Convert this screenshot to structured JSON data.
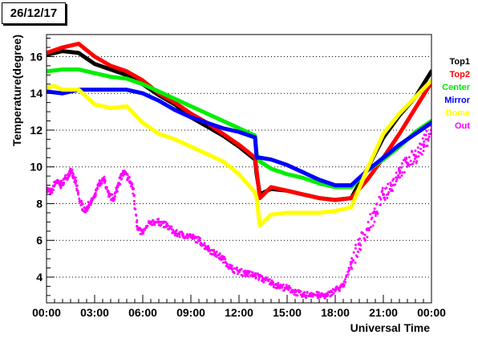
{
  "title": "26/12/17",
  "chart_data": {
    "type": "scatter",
    "xlabel": "Universal Time",
    "ylabel": "Temperature(degree)",
    "xlim": [
      0,
      24
    ],
    "ylim": [
      2.6,
      17.2
    ],
    "grid": "horizontal-dotted",
    "legend_position": "right",
    "x_ticks": [
      0,
      3,
      6,
      9,
      12,
      15,
      18,
      21,
      24
    ],
    "x_tick_labels": [
      "00:00",
      "03:00",
      "06:00",
      "09:00",
      "12:00",
      "15:00",
      "18:00",
      "21:00",
      "00:00"
    ],
    "y_ticks": [
      4,
      6,
      8,
      10,
      12,
      14,
      16
    ],
    "y_tick_labels": [
      "4",
      "6",
      "8",
      "10",
      "12",
      "14",
      "16"
    ],
    "series": [
      {
        "name": "Top1",
        "color": "#000000",
        "style": "thick",
        "x": [
          0,
          1,
          2,
          3,
          4,
          5,
          6,
          7,
          8,
          9,
          10,
          11,
          12,
          13,
          13.1,
          13.3,
          14,
          15,
          16,
          17,
          18,
          19,
          20,
          21,
          22,
          23,
          24
        ],
        "y": [
          16.1,
          16.3,
          16.2,
          15.6,
          15.3,
          15.0,
          14.5,
          13.9,
          13.4,
          12.7,
          12.2,
          11.7,
          11.1,
          10.4,
          9.6,
          8.5,
          8.8,
          8.7,
          8.5,
          8.3,
          8.2,
          8.3,
          9.9,
          11.6,
          12.8,
          13.8,
          15.2
        ]
      },
      {
        "name": "Top2",
        "color": "#ff0000",
        "style": "thick",
        "x": [
          0,
          1,
          2,
          3,
          4,
          5,
          6,
          7,
          8,
          9,
          10,
          11,
          12,
          13,
          13.1,
          13.3,
          14,
          15,
          16,
          17,
          18,
          19,
          20,
          21,
          22,
          23,
          24
        ],
        "y": [
          16.2,
          16.5,
          16.7,
          16.0,
          15.5,
          15.2,
          14.7,
          14.0,
          13.5,
          12.9,
          12.4,
          11.8,
          11.2,
          10.5,
          9.8,
          8.3,
          8.9,
          8.7,
          8.5,
          8.3,
          8.2,
          8.3,
          9.3,
          10.5,
          11.8,
          13.2,
          14.6
        ]
      },
      {
        "name": "Center",
        "color": "#00ee00",
        "style": "thick",
        "x": [
          0,
          1,
          2,
          3,
          4,
          5,
          6,
          7,
          8,
          9,
          10,
          11,
          12,
          13,
          13.1,
          13.3,
          14,
          15,
          16,
          17,
          18,
          19,
          20,
          21,
          22,
          23,
          24
        ],
        "y": [
          15.2,
          15.3,
          15.3,
          15.1,
          14.9,
          14.8,
          14.5,
          14.1,
          13.7,
          13.3,
          12.9,
          12.5,
          12.1,
          11.7,
          10.7,
          10.3,
          9.9,
          9.6,
          9.4,
          9.1,
          8.9,
          8.9,
          9.8,
          10.4,
          11.1,
          11.9,
          12.5
        ]
      },
      {
        "name": "Mirror",
        "color": "#0000ff",
        "style": "thick",
        "x": [
          0,
          1,
          2,
          3,
          4,
          5,
          6,
          7,
          8,
          9,
          10,
          11,
          12,
          13,
          13.1,
          13.3,
          14,
          15,
          16,
          17,
          18,
          19,
          20,
          21,
          22,
          23,
          24
        ],
        "y": [
          14.1,
          14.0,
          14.2,
          14.2,
          14.2,
          14.2,
          14.0,
          13.6,
          13.1,
          12.7,
          12.4,
          12.1,
          11.9,
          11.6,
          10.5,
          10.5,
          10.4,
          10.1,
          9.7,
          9.3,
          9.0,
          9.0,
          9.8,
          10.5,
          11.2,
          11.8,
          12.4
        ]
      },
      {
        "name": "Dome",
        "color": "#ffff00",
        "style": "thick",
        "x": [
          0,
          0.5,
          1,
          2,
          3,
          4,
          5,
          6,
          7,
          8,
          9,
          10,
          11,
          12,
          13,
          13.1,
          13.3,
          14,
          15,
          16,
          17,
          18,
          19,
          20,
          21,
          22,
          23,
          24
        ],
        "y": [
          14.3,
          14.4,
          14.2,
          14.2,
          13.4,
          13.2,
          13.3,
          12.4,
          11.8,
          11.5,
          11.1,
          10.7,
          10.3,
          9.6,
          8.6,
          8.3,
          6.8,
          7.4,
          7.5,
          7.5,
          7.5,
          7.6,
          7.8,
          9.9,
          11.8,
          12.9,
          13.8,
          14.7
        ]
      },
      {
        "name": "Out",
        "color": "#ff00ff",
        "style": "points",
        "x": [
          0,
          0.3,
          0.6,
          0.9,
          1.2,
          1.5,
          1.8,
          2.1,
          2.4,
          2.7,
          3.0,
          3.3,
          3.6,
          3.9,
          4.2,
          4.5,
          4.8,
          5.1,
          5.4,
          5.7,
          6.0,
          6.5,
          7,
          7.5,
          8,
          8.5,
          9,
          9.5,
          10,
          10.5,
          11,
          11.5,
          12,
          12.5,
          13,
          13.5,
          14,
          14.5,
          15,
          15.5,
          16,
          16.5,
          17,
          17.5,
          18,
          18.5,
          19,
          19.5,
          20,
          20.5,
          21,
          21.5,
          22,
          22.5,
          23,
          23.5,
          24
        ],
        "y": [
          8.8,
          8.6,
          9.2,
          9.0,
          9.4,
          9.8,
          9.2,
          8.1,
          7.6,
          8.0,
          8.4,
          9.1,
          9.3,
          8.4,
          8.3,
          9.1,
          9.7,
          9.4,
          8.8,
          6.6,
          6.4,
          7.0,
          7.0,
          6.8,
          6.4,
          6.3,
          6.2,
          6.0,
          5.6,
          5.3,
          5.0,
          4.5,
          4.3,
          4.2,
          4.1,
          3.9,
          3.7,
          3.5,
          3.4,
          3.2,
          3.0,
          3.1,
          3.0,
          3.0,
          3.3,
          3.5,
          4.8,
          5.8,
          6.6,
          7.5,
          8.5,
          9.0,
          9.8,
          10.2,
          10.6,
          11.2,
          12.0
        ]
      }
    ]
  }
}
